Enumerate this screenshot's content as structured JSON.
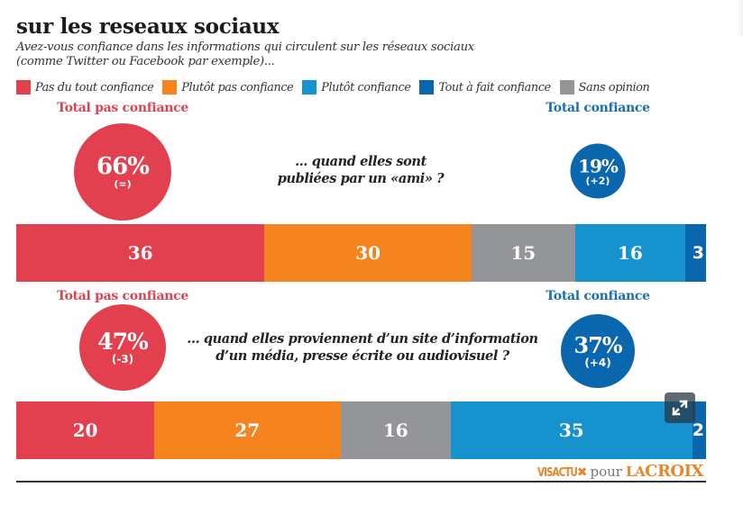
{
  "header": {
    "title": "sur les reseaux sociaux",
    "subtitle_line1": "Avez-vous confiance dans les informations qui circulent sur les réseaux sociaux",
    "subtitle_line2": "(comme Twitter ou Facebook par exemple)..."
  },
  "legend": [
    {
      "label": "Pas du tout confiance",
      "color": "#e3404f"
    },
    {
      "label": "Plutôt pas confiance",
      "color": "#f5841f"
    },
    {
      "label": "Plutôt confiance",
      "color": "#1693cf"
    },
    {
      "label": "Tout à fait confiance",
      "color": "#0a66ad"
    },
    {
      "label": "Sans opinion",
      "color": "#939598"
    }
  ],
  "colors": {
    "neg_circle": "#e3404f",
    "pos_circle": "#0a66ad",
    "neg_text": "#d94552",
    "pos_text": "#1a6fad"
  },
  "chart_data": {
    "type": "bar",
    "orientation": "horizontal-stacked",
    "title": "sur les reseaux sociaux",
    "subtitle": "Avez-vous confiance dans les informations qui circulent sur les réseaux sociaux (comme Twitter ou Facebook par exemple)...",
    "unit": "%",
    "segment_order": [
      "Pas du tout confiance",
      "Plutôt pas confiance",
      "Sans opinion",
      "Plutôt confiance",
      "Tout à fait confiance"
    ],
    "segment_colors": [
      "#e3404f",
      "#f5841f",
      "#939598",
      "#1693cf",
      "#0a66ad"
    ],
    "rows": [
      {
        "question_line1": "... quand elles sont",
        "question_line2": "publiées par un «ami» ?",
        "values": [
          36,
          30,
          15,
          16,
          3
        ],
        "labels": [
          "36",
          "30",
          "15",
          "16",
          "3"
        ],
        "total_neg": {
          "label": "Total pas confiance",
          "value": "66%",
          "delta": "(=)"
        },
        "total_pos": {
          "label": "Total confiance",
          "value": "19%",
          "delta": "(+2)"
        }
      },
      {
        "question_line1": "... quand elles proviennent d’un site d’information",
        "question_line2": "d’un média, presse écrite ou audiovisuel ?",
        "values": [
          20,
          27,
          16,
          35,
          2
        ],
        "labels": [
          "20",
          "27",
          "16",
          "35",
          "2"
        ],
        "total_neg": {
          "label": "Total pas confiance",
          "value": "47%",
          "delta": "(-3)"
        },
        "total_pos": {
          "label": "Total confiance",
          "value": "37%",
          "delta": "(+4)"
        }
      }
    ],
    "legend_placement": "top"
  },
  "credit": {
    "visactu": "VISACTU",
    "pour": "pour",
    "la": "LA",
    "croix": "CROIX"
  },
  "controls": {
    "expand_icon": "expand-arrows-icon"
  }
}
